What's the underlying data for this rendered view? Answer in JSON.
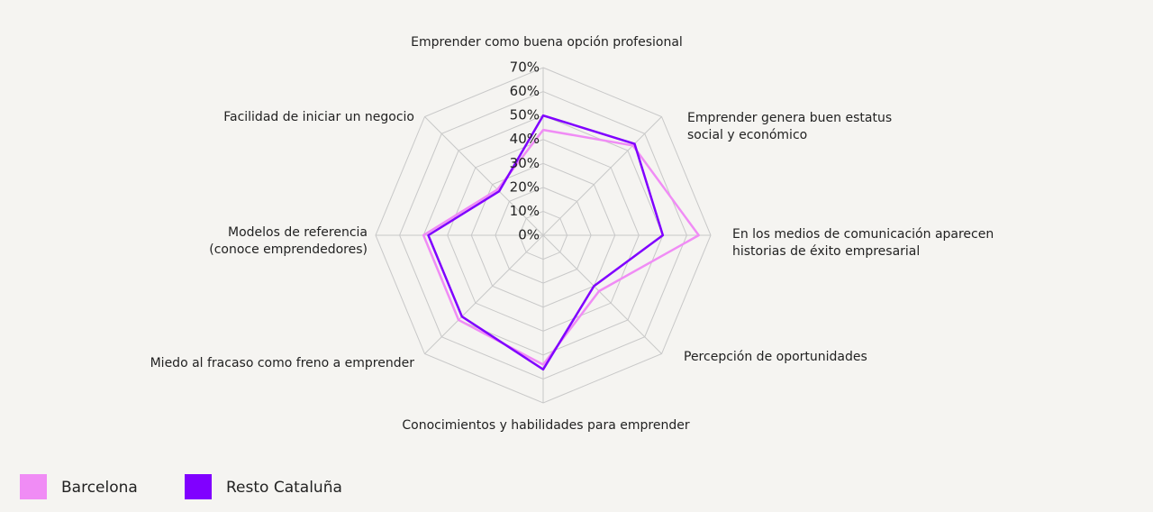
{
  "chart_data": {
    "type": "radar",
    "categories": [
      [
        "Emprender como buena opción profesional"
      ],
      [
        "Emprender genera buen estatus",
        "social y económico"
      ],
      [
        "En los medios de comunicación aparecen",
        "historias de éxito empresarial"
      ],
      [
        "Percepción de oportunidades"
      ],
      [
        "Conocimientos y habilidades para emprender"
      ],
      [
        "Miedo al fracaso como freno a emprender"
      ],
      [
        "Modelos de referencia",
        "(conoce emprendedores)"
      ],
      [
        "Facilidad de iniciar un negocio"
      ]
    ],
    "series": [
      {
        "name": "Barcelona",
        "color": "#f08cf5",
        "values": [
          44,
          53,
          65,
          33,
          54,
          50,
          50,
          27
        ]
      },
      {
        "name": "Resto Cataluña",
        "color": "#8000ff",
        "values": [
          50,
          54,
          50,
          30,
          56,
          48,
          48,
          26
        ]
      }
    ],
    "ylim": [
      0,
      70
    ],
    "yticks": [
      {
        "value": 0,
        "label": "0%"
      },
      {
        "value": 10,
        "label": "10%"
      },
      {
        "value": 20,
        "label": "20%"
      },
      {
        "value": 30,
        "label": "30%"
      },
      {
        "value": 40,
        "label": "40%"
      },
      {
        "value": 50,
        "label": "50%"
      },
      {
        "value": 60,
        "label": "60%"
      },
      {
        "value": 70,
        "label": "70%"
      }
    ],
    "grid": true
  }
}
